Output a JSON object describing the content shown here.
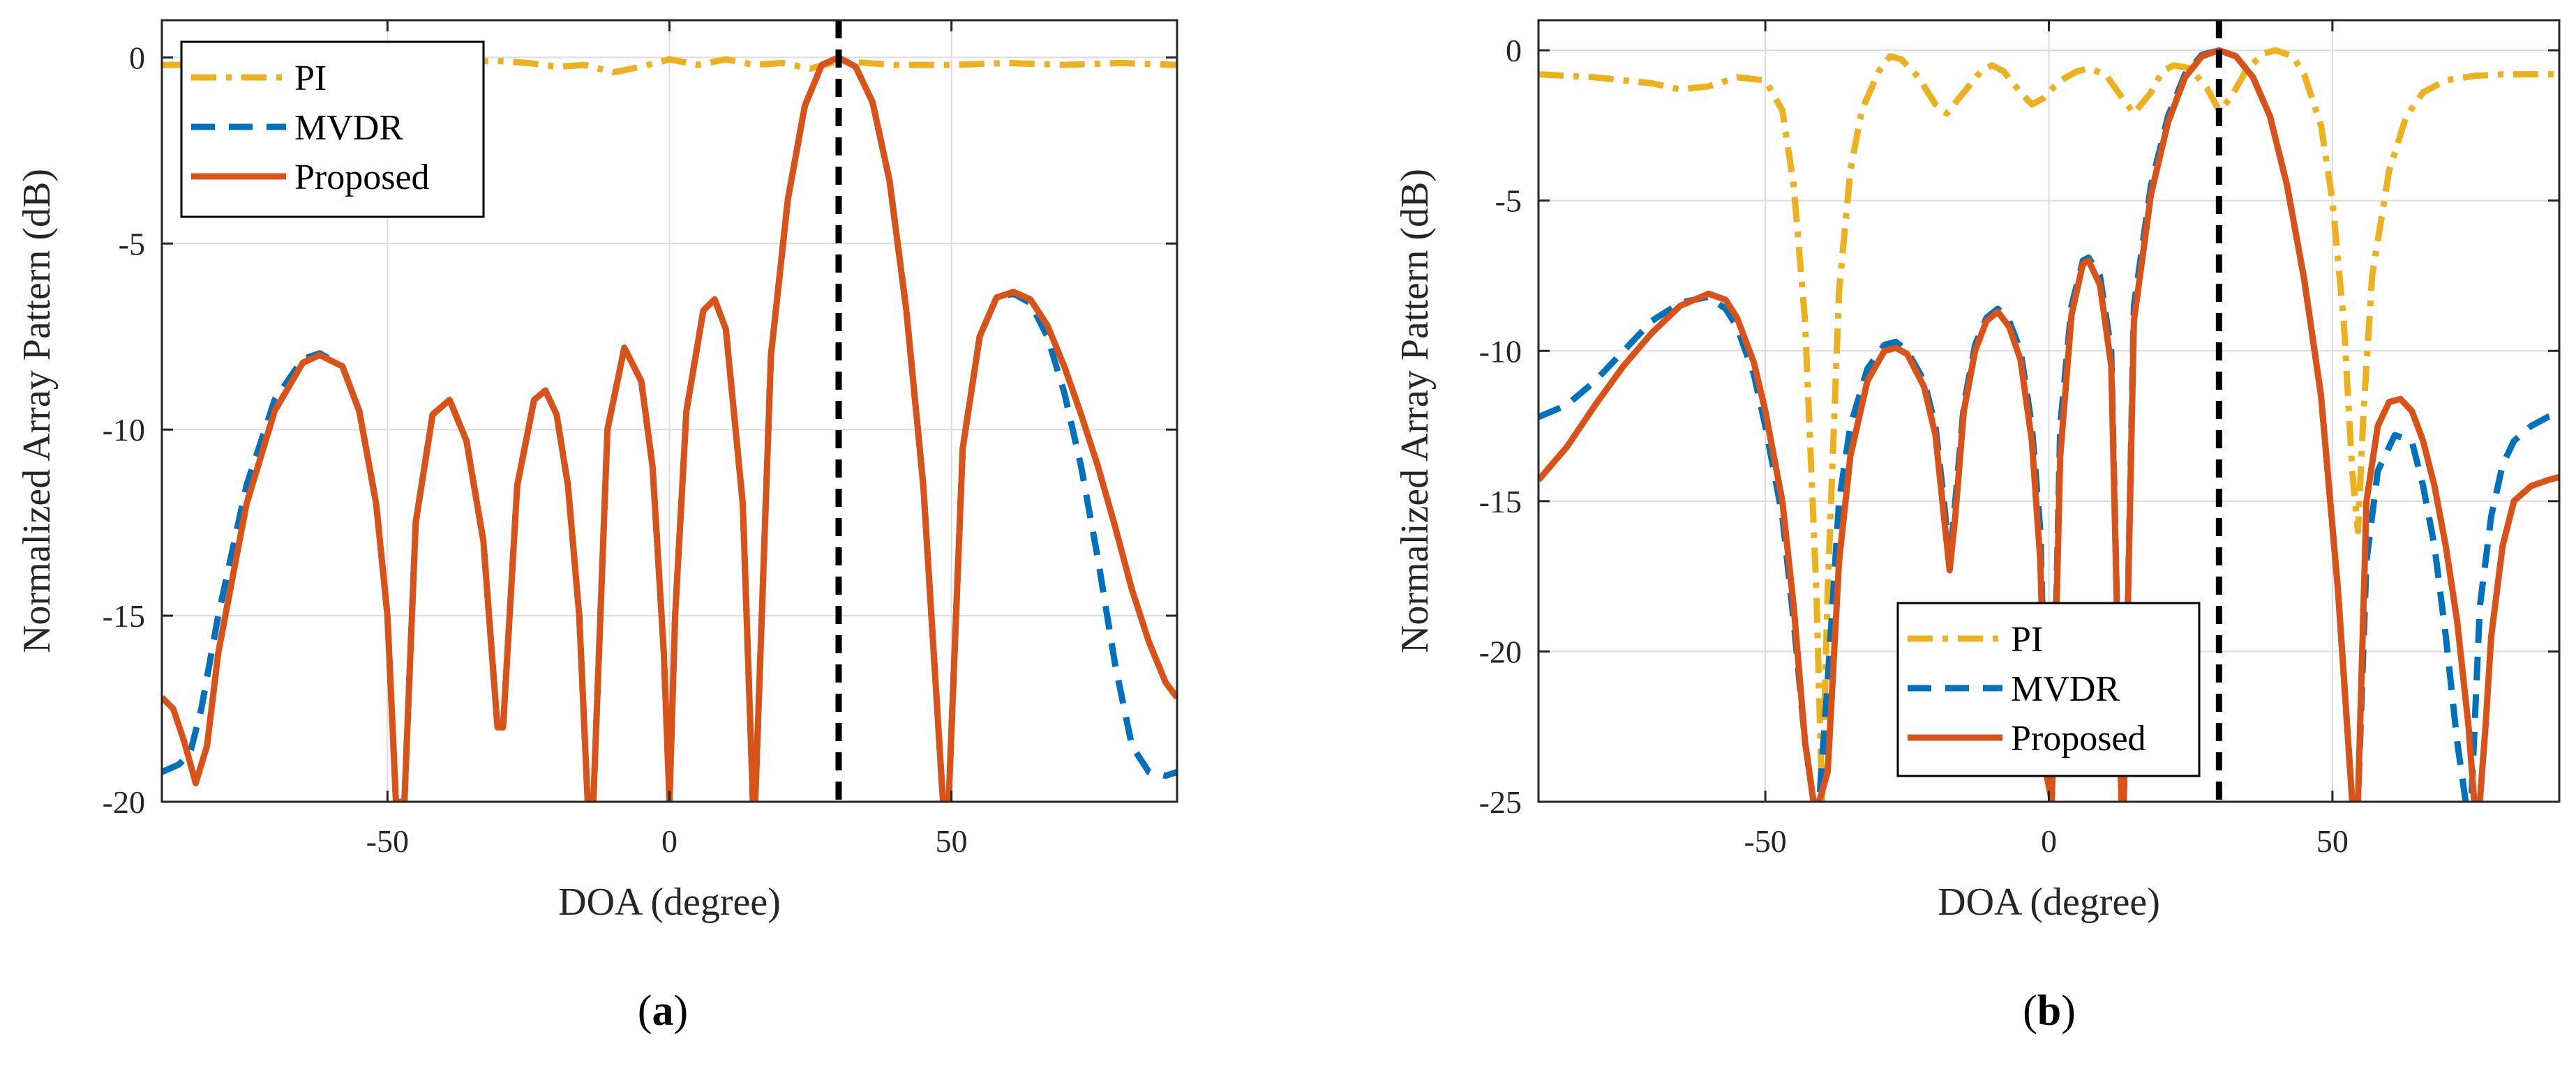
{
  "colors": {
    "PI": "#EDB120",
    "MVDR": "#0072BD",
    "Proposed": "#D95319",
    "marker": "#000000",
    "grid": "#DCDCDC",
    "axis": "#262626"
  },
  "chart_data": [
    {
      "type": "line",
      "panel_label": {
        "open": "(",
        "letter": "a",
        "close": ")"
      },
      "xlabel": "DOA (degree)",
      "ylabel": "Normalized Array Pattern (dB)",
      "xlim": [
        -90,
        90
      ],
      "ylim": [
        -20,
        1
      ],
      "xticks": [
        -50,
        0,
        50
      ],
      "yticks": [
        0,
        -5,
        -10,
        -15,
        -20
      ],
      "xtick_labels": [
        "-50",
        "0",
        "50"
      ],
      "ytick_labels": [
        "0",
        "-5",
        "-10",
        "-15",
        "-20"
      ],
      "grid": true,
      "legend_position": "top-left",
      "marker_line": {
        "x": 30,
        "style": "dashed"
      },
      "legend": [
        "PI",
        "MVDR",
        "Proposed"
      ],
      "series": [
        {
          "name": "PI",
          "style": "dash-dot",
          "x": [
            -90,
            -80,
            -70,
            -60,
            -50,
            -40,
            -35,
            -30,
            -25,
            -20,
            -15,
            -10,
            -5,
            0,
            5,
            10,
            15,
            20,
            25,
            30,
            35,
            40,
            50,
            60,
            70,
            80,
            90
          ],
          "y": [
            -0.2,
            -0.2,
            -0.2,
            -0.2,
            -0.2,
            -0.2,
            -0.1,
            -0.1,
            -0.15,
            -0.25,
            -0.2,
            -0.4,
            -0.25,
            -0.05,
            -0.2,
            -0.05,
            -0.2,
            -0.15,
            -0.3,
            -0.1,
            -0.15,
            -0.2,
            -0.2,
            -0.15,
            -0.2,
            -0.15,
            -0.2
          ]
        },
        {
          "name": "MVDR",
          "style": "dashed",
          "x": [
            -90,
            -87,
            -85,
            -83,
            -80,
            -75,
            -70,
            -65,
            -62,
            -58,
            -55,
            -52,
            -50,
            -48.5,
            -47,
            -45,
            -42,
            -39,
            -36,
            -33,
            -30.5,
            -29.5,
            -27,
            -24,
            -22,
            -20,
            -18,
            -16,
            -14.5,
            -13.5,
            -11,
            -8,
            -5,
            -3,
            -1,
            0,
            1,
            3,
            6,
            8,
            10,
            13,
            14.8,
            15.2,
            18,
            21,
            24,
            27,
            30,
            33,
            36,
            39,
            42,
            45,
            48.5,
            49.5,
            52,
            55,
            58,
            61,
            64,
            67,
            70,
            73,
            76,
            79,
            82,
            85,
            88,
            90
          ],
          "y": [
            -19.2,
            -19.0,
            -18.7,
            -17.5,
            -15.0,
            -11.5,
            -9.2,
            -8.1,
            -7.95,
            -8.3,
            -9.5,
            -12.0,
            -15.0,
            -20,
            -20,
            -12.5,
            -9.6,
            -9.2,
            -10.3,
            -13.0,
            -18.0,
            -18.0,
            -11.5,
            -9.2,
            -8.95,
            -9.6,
            -11.5,
            -15.0,
            -20,
            -20,
            -10.0,
            -7.8,
            -8.7,
            -11.0,
            -16.0,
            -20,
            -15.0,
            -9.5,
            -6.8,
            -6.5,
            -7.3,
            -12.0,
            -20,
            -20,
            -8.0,
            -3.8,
            -1.3,
            -0.2,
            0,
            -0.25,
            -1.2,
            -3.3,
            -6.8,
            -11.5,
            -20,
            -20,
            -10.5,
            -7.5,
            -6.45,
            -6.35,
            -6.6,
            -7.5,
            -9.0,
            -11.0,
            -13.5,
            -16.3,
            -18.5,
            -19.2,
            -19.3,
            -19.2
          ]
        },
        {
          "name": "Proposed",
          "style": "solid",
          "x": [
            -90,
            -88,
            -86,
            -84,
            -82,
            -80,
            -75,
            -70,
            -65,
            -62,
            -58,
            -55,
            -52,
            -50,
            -48.5,
            -47,
            -45,
            -42,
            -39,
            -36,
            -33,
            -30.5,
            -29.5,
            -27,
            -24,
            -22,
            -20,
            -18,
            -16,
            -14.5,
            -13.5,
            -11,
            -8,
            -5,
            -3,
            -1,
            0,
            1,
            3,
            6,
            8,
            10,
            13,
            14.8,
            15.2,
            18,
            21,
            24,
            27,
            30,
            33,
            36,
            39,
            42,
            45,
            48.5,
            49.5,
            52,
            55,
            58,
            61,
            64,
            67,
            70,
            73,
            76,
            79,
            82,
            85,
            88,
            90
          ],
          "y": [
            -17.2,
            -17.5,
            -18.4,
            -19.5,
            -18.5,
            -16.0,
            -12.0,
            -9.5,
            -8.2,
            -8.0,
            -8.3,
            -9.5,
            -12.0,
            -15.0,
            -20,
            -20,
            -12.5,
            -9.6,
            -9.2,
            -10.3,
            -13.0,
            -18.0,
            -18.0,
            -11.5,
            -9.2,
            -8.95,
            -9.6,
            -11.5,
            -15.0,
            -20,
            -20,
            -10.0,
            -7.8,
            -8.7,
            -11.0,
            -16.0,
            -20,
            -15.0,
            -9.5,
            -6.8,
            -6.5,
            -7.3,
            -12.0,
            -20,
            -20,
            -8.0,
            -3.8,
            -1.3,
            -0.2,
            0,
            -0.25,
            -1.2,
            -3.3,
            -6.8,
            -11.5,
            -20,
            -20,
            -10.5,
            -7.5,
            -6.45,
            -6.3,
            -6.5,
            -7.2,
            -8.3,
            -9.6,
            -11.0,
            -12.6,
            -14.3,
            -15.7,
            -16.8,
            -17.2
          ]
        }
      ]
    },
    {
      "type": "line",
      "panel_label": {
        "open": "(",
        "letter": "b",
        "close": ")"
      },
      "xlabel": "DOA (degree)",
      "ylabel": "Normalized Array Pattern (dB)",
      "xlim": [
        -90,
        90
      ],
      "ylim": [
        -25,
        1
      ],
      "xticks": [
        -50,
        0,
        50
      ],
      "yticks": [
        0,
        -5,
        -10,
        -15,
        -20,
        -25
      ],
      "xtick_labels": [
        "-50",
        "0",
        "50"
      ],
      "ytick_labels": [
        "0",
        "-5",
        "-10",
        "-15",
        "-20",
        "-25"
      ],
      "grid": true,
      "legend_position": "bottom-right",
      "marker_line": {
        "x": 30,
        "style": "dashed"
      },
      "legend": [
        "PI",
        "MVDR",
        "Proposed"
      ],
      "series": [
        {
          "name": "PI",
          "style": "dash-dot",
          "x": [
            -90,
            -80,
            -70,
            -65,
            -60,
            -55,
            -50,
            -47,
            -45,
            -43,
            -41,
            -40,
            -39,
            -37,
            -35,
            -33,
            -30,
            -28,
            -26,
            -23,
            -20,
            -18,
            -15,
            -12,
            -10,
            -8,
            -5,
            -3,
            -1,
            0,
            1,
            3,
            5,
            7,
            10,
            13,
            15,
            18,
            20,
            22,
            25,
            28,
            30,
            32,
            35,
            38,
            40,
            43,
            45,
            48,
            50,
            52,
            53.5,
            54.5,
            55.5,
            57,
            60,
            63,
            66,
            70,
            75,
            80,
            85,
            90
          ],
          "y": [
            -0.8,
            -0.9,
            -1.1,
            -1.3,
            -1.2,
            -0.9,
            -1.0,
            -2.0,
            -4.5,
            -9.0,
            -18.0,
            -25,
            -18.0,
            -8.0,
            -4.0,
            -2.0,
            -0.7,
            -0.2,
            -0.3,
            -0.9,
            -1.8,
            -2.1,
            -1.4,
            -0.7,
            -0.5,
            -0.7,
            -1.4,
            -1.8,
            -1.6,
            -1.4,
            -1.2,
            -0.9,
            -0.7,
            -0.6,
            -0.8,
            -1.6,
            -2.1,
            -1.4,
            -0.7,
            -0.5,
            -0.6,
            -1.3,
            -2.0,
            -1.6,
            -0.6,
            -0.1,
            0,
            -0.2,
            -0.8,
            -2.5,
            -5.0,
            -9.0,
            -14.0,
            -16.0,
            -12.0,
            -7.5,
            -4.0,
            -2.2,
            -1.4,
            -1.0,
            -0.85,
            -0.8,
            -0.8,
            -0.8
          ]
        },
        {
          "name": "MVDR",
          "style": "dashed",
          "x": [
            -90,
            -85,
            -80,
            -75,
            -70,
            -65,
            -60,
            -57,
            -55,
            -52,
            -50,
            -47,
            -45,
            -43,
            -41.5,
            -40.5,
            -39,
            -37,
            -35,
            -32,
            -29,
            -27,
            -25,
            -22,
            -20,
            -18.5,
            -17.5,
            -16.5,
            -15,
            -13,
            -11,
            -9,
            -7,
            -5,
            -3,
            -1.5,
            -0.5,
            0.5,
            2,
            4,
            6,
            7,
            9,
            11,
            12.8,
            13.2,
            15,
            18,
            21,
            24,
            27,
            30,
            33,
            36,
            39,
            42,
            45,
            48,
            51,
            53.5,
            54.5,
            56,
            58,
            61,
            64,
            66,
            68,
            70,
            72,
            73.5,
            74.5,
            76,
            78,
            80,
            82,
            85,
            88,
            90
          ],
          "y": [
            -12.2,
            -11.8,
            -11.0,
            -10.0,
            -9.0,
            -8.4,
            -8.2,
            -8.6,
            -9.2,
            -10.8,
            -12.5,
            -15.5,
            -19.0,
            -23.0,
            -25,
            -25,
            -21.0,
            -15.0,
            -12.5,
            -10.6,
            -9.8,
            -9.7,
            -10.0,
            -11.0,
            -12.5,
            -15.0,
            -17.0,
            -15.0,
            -11.8,
            -9.8,
            -8.9,
            -8.6,
            -9.0,
            -10.0,
            -12.5,
            -16.0,
            -23.0,
            -25,
            -12.5,
            -8.5,
            -7.0,
            -6.9,
            -7.5,
            -10.0,
            -25,
            -25,
            -8.5,
            -4.5,
            -2.2,
            -0.8,
            -0.15,
            0,
            -0.2,
            -0.9,
            -2.2,
            -4.5,
            -7.6,
            -11.5,
            -18.0,
            -25,
            -25,
            -17.0,
            -14.0,
            -12.8,
            -13.0,
            -14.5,
            -16.5,
            -19.5,
            -23.0,
            -25,
            -25,
            -18.5,
            -15.5,
            -13.8,
            -13.0,
            -12.5,
            -12.2,
            -12.1
          ]
        },
        {
          "name": "Proposed",
          "style": "solid",
          "x": [
            -90,
            -85,
            -80,
            -75,
            -70,
            -65,
            -60,
            -57,
            -55,
            -52,
            -50,
            -47,
            -45,
            -43,
            -41.5,
            -40.5,
            -39,
            -37,
            -35,
            -32,
            -29,
            -27,
            -25,
            -22,
            -20,
            -18.5,
            -17.5,
            -16.5,
            -15,
            -13,
            -11,
            -9,
            -7,
            -5,
            -3,
            -1.5,
            -0.5,
            0.5,
            2,
            4,
            6,
            7,
            9,
            11,
            12.8,
            13.2,
            15,
            18,
            21,
            24,
            27,
            30,
            33,
            36,
            39,
            42,
            45,
            48,
            51,
            53.5,
            54.5,
            56,
            58,
            60,
            62,
            64,
            66,
            68,
            70,
            72,
            74,
            75,
            76,
            77,
            78,
            80,
            82,
            85,
            88,
            90
          ],
          "y": [
            -14.3,
            -13.2,
            -11.8,
            -10.5,
            -9.4,
            -8.5,
            -8.1,
            -8.3,
            -8.9,
            -10.4,
            -12.0,
            -15.0,
            -18.5,
            -23.0,
            -25,
            -25,
            -24.0,
            -17.0,
            -13.5,
            -11.0,
            -10.0,
            -9.9,
            -10.1,
            -11.2,
            -12.8,
            -15.5,
            -17.3,
            -15.5,
            -12.0,
            -10.0,
            -9.0,
            -8.7,
            -9.2,
            -10.3,
            -13.0,
            -17.0,
            -24.0,
            -25,
            -13.5,
            -8.8,
            -7.1,
            -7.0,
            -7.8,
            -10.5,
            -25,
            -25,
            -9.0,
            -4.8,
            -2.4,
            -0.9,
            -0.2,
            0,
            -0.2,
            -0.9,
            -2.2,
            -4.5,
            -7.6,
            -11.5,
            -18.0,
            -25,
            -25,
            -15.0,
            -12.5,
            -11.7,
            -11.6,
            -12.0,
            -13.0,
            -14.5,
            -16.5,
            -19.0,
            -22.5,
            -25,
            -25,
            -22.5,
            -19.5,
            -16.5,
            -15.0,
            -14.5,
            -14.3,
            -14.2
          ]
        }
      ]
    }
  ]
}
